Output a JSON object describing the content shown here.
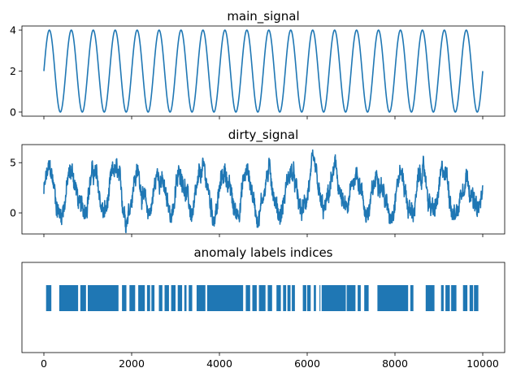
{
  "chart_data": [
    {
      "type": "line",
      "title": "main_signal",
      "xlabel": "",
      "ylabel": "",
      "xlim": [
        -500,
        10500
      ],
      "ylim": [
        -0.2,
        4.2
      ],
      "yticks": [
        0,
        2,
        4
      ],
      "ytick_labels": [
        "0",
        "2",
        "4"
      ],
      "xticks": [
        0,
        2000,
        4000,
        6000,
        8000,
        10000
      ],
      "show_xtick_labels": false,
      "color": "#1f77b4",
      "series": [
        {
          "kind": "sine",
          "n_points": 10000,
          "offset": 2,
          "amplitude": 2,
          "cycles": 20,
          "phase": 0
        }
      ]
    },
    {
      "type": "line",
      "title": "dirty_signal",
      "xlabel": "",
      "ylabel": "",
      "xlim": [
        -500,
        10500
      ],
      "ylim": [
        -2.1,
        6.8
      ],
      "yticks": [
        0,
        5
      ],
      "ytick_labels": [
        "0",
        "5"
      ],
      "xticks": [
        0,
        2000,
        4000,
        6000,
        8000,
        10000
      ],
      "show_xtick_labels": false,
      "color": "#1f77b4",
      "series": [
        {
          "kind": "noisy-sine",
          "n_points": 10000,
          "offset": 2,
          "amplitude": 2,
          "cycles": 20,
          "phase": 0,
          "noise_amplitude": 1.3
        }
      ]
    },
    {
      "type": "bar",
      "title": "anomaly labels indices",
      "xlabel": "",
      "ylabel": "",
      "xlim": [
        -500,
        10500
      ],
      "xticks": [
        0,
        2000,
        4000,
        6000,
        8000,
        10000
      ],
      "xtick_labels": [
        "0",
        "2000",
        "4000",
        "6000",
        "8000",
        "10000"
      ],
      "show_xtick_labels": true,
      "color": "#1f77b4",
      "intervals": [
        [
          50,
          170
        ],
        [
          350,
          780
        ],
        [
          830,
          960
        ],
        [
          1000,
          1700
        ],
        [
          1780,
          1880
        ],
        [
          1950,
          2080
        ],
        [
          2150,
          2300
        ],
        [
          2350,
          2420
        ],
        [
          2450,
          2520
        ],
        [
          2620,
          2700
        ],
        [
          2750,
          2850
        ],
        [
          2900,
          3000
        ],
        [
          3050,
          3150
        ],
        [
          3200,
          3250
        ],
        [
          3300,
          3380
        ],
        [
          3480,
          3680
        ],
        [
          3720,
          4540
        ],
        [
          4600,
          4700
        ],
        [
          4750,
          4850
        ],
        [
          4900,
          5050
        ],
        [
          5100,
          5200
        ],
        [
          5300,
          5400
        ],
        [
          5450,
          5520
        ],
        [
          5550,
          5620
        ],
        [
          5650,
          5720
        ],
        [
          5900,
          5980
        ],
        [
          6000,
          6080
        ],
        [
          6150,
          6200
        ],
        [
          6280,
          6300
        ],
        [
          6330,
          6880
        ],
        [
          6900,
          7100
        ],
        [
          7150,
          7220
        ],
        [
          7300,
          7400
        ],
        [
          7600,
          8300
        ],
        [
          8350,
          8420
        ],
        [
          8700,
          8900
        ],
        [
          9050,
          9110
        ],
        [
          9150,
          9250
        ],
        [
          9280,
          9400
        ],
        [
          9550,
          9650
        ],
        [
          9700,
          9780
        ],
        [
          9800,
          9900
        ]
      ]
    }
  ]
}
